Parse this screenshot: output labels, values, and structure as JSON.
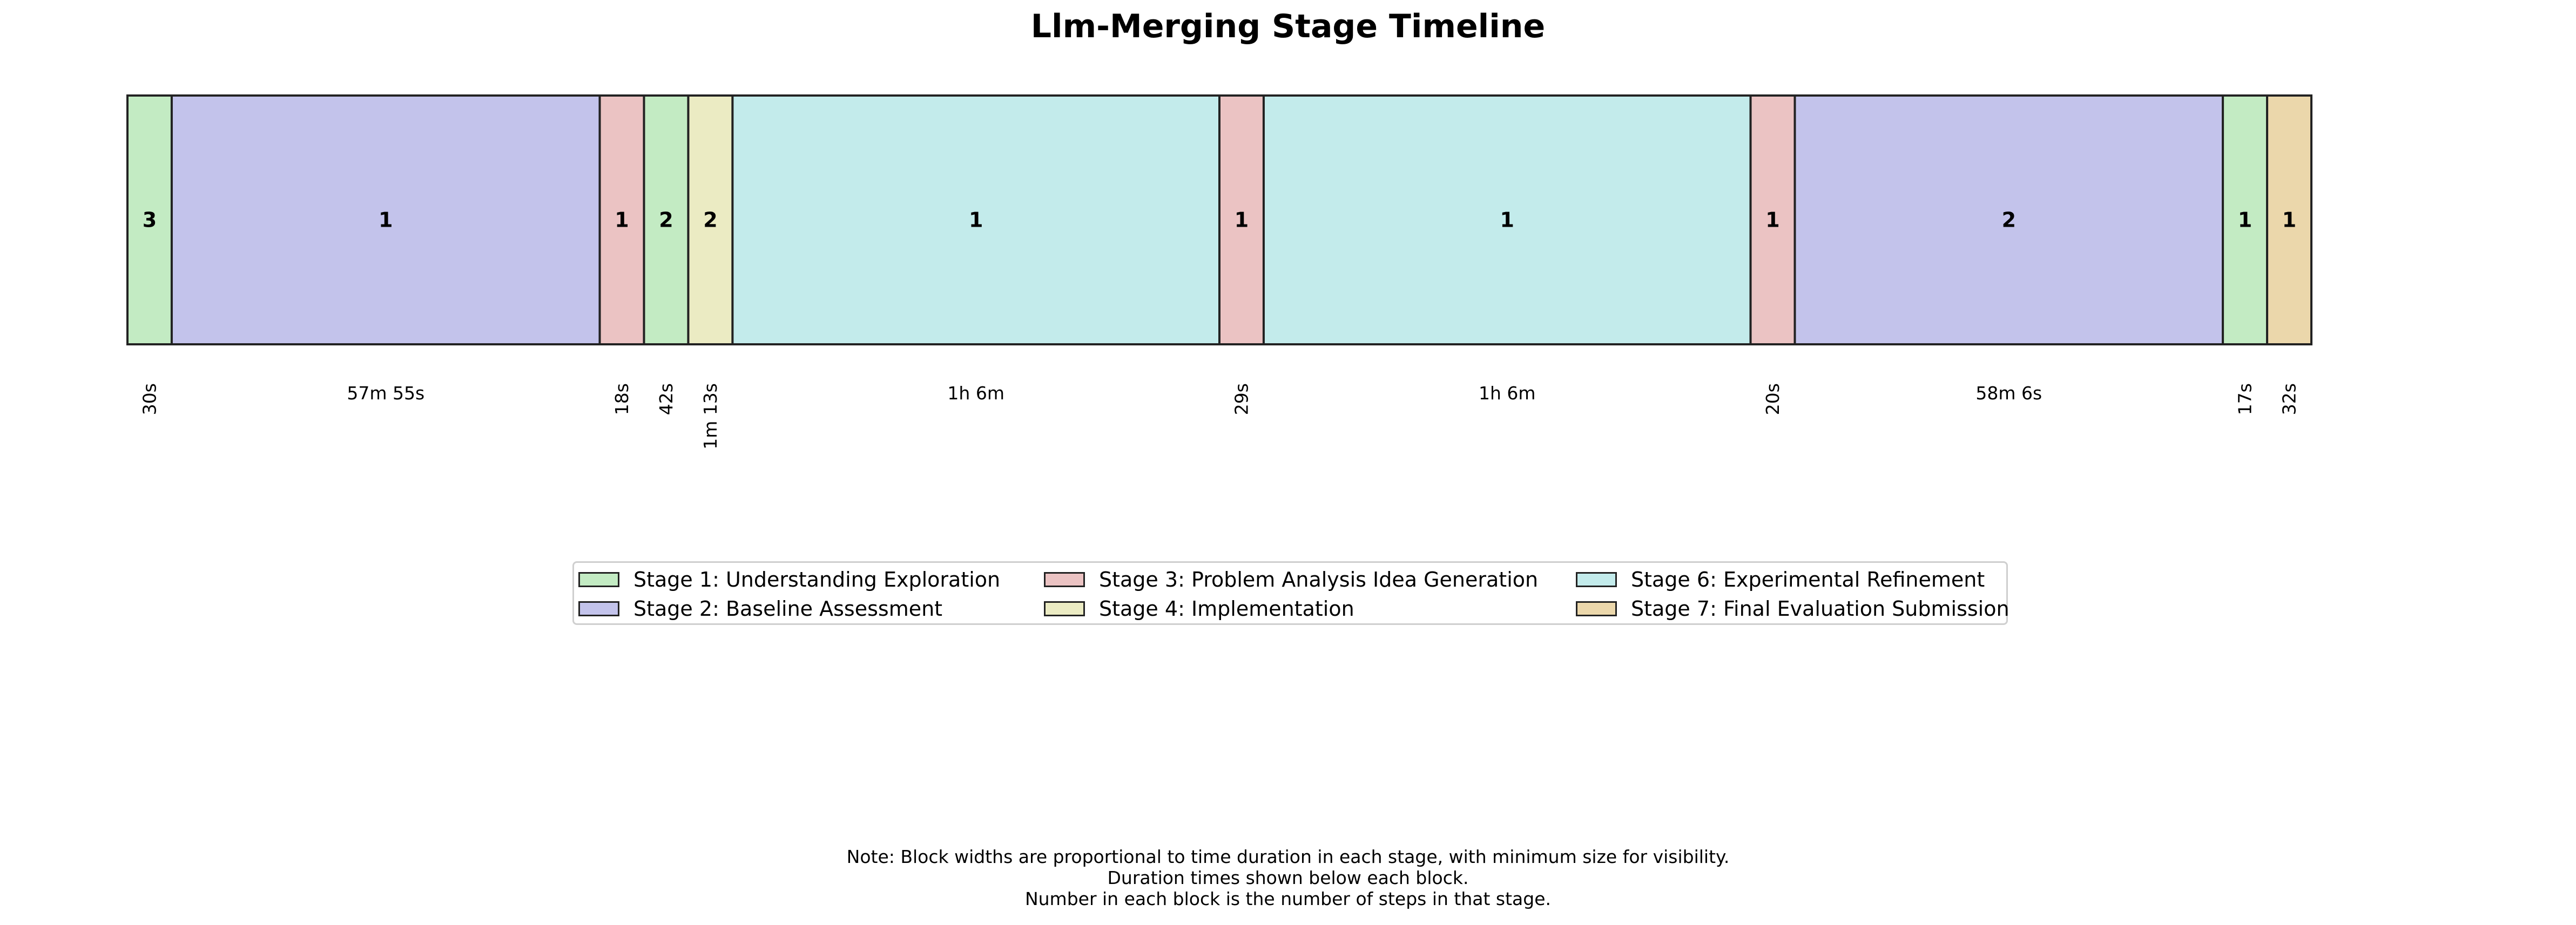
{
  "chart_data": {
    "type": "timeline",
    "title": "Llm-Merging Stage Timeline",
    "blocks": [
      {
        "stage": 1,
        "steps": "3",
        "duration": "30s",
        "relative_width": 1.0
      },
      {
        "stage": 2,
        "steps": "1",
        "duration": "57m 55s",
        "relative_width": 9.67
      },
      {
        "stage": 3,
        "steps": "1",
        "duration": "18s",
        "relative_width": 1.0
      },
      {
        "stage": 1,
        "steps": "2",
        "duration": "42s",
        "relative_width": 1.0
      },
      {
        "stage": 4,
        "steps": "2",
        "duration": "1m 13s",
        "relative_width": 1.0
      },
      {
        "stage": 6,
        "steps": "1",
        "duration": "1h 6m",
        "relative_width": 11.0
      },
      {
        "stage": 3,
        "steps": "1",
        "duration": "29s",
        "relative_width": 1.0
      },
      {
        "stage": 6,
        "steps": "1",
        "duration": "1h 6m",
        "relative_width": 11.0
      },
      {
        "stage": 3,
        "steps": "1",
        "duration": "20s",
        "relative_width": 1.0
      },
      {
        "stage": 2,
        "steps": "2",
        "duration": "58m 6s",
        "relative_width": 9.67
      },
      {
        "stage": 1,
        "steps": "1",
        "duration": "17s",
        "relative_width": 1.0
      },
      {
        "stage": 7,
        "steps": "1",
        "duration": "32s",
        "relative_width": 1.0
      }
    ],
    "stages": [
      {
        "id": 1,
        "name": "Stage 1: Understanding Exploration",
        "color": "#c3ebc3"
      },
      {
        "id": 2,
        "name": "Stage 2: Baseline Assessment",
        "color": "#c3c3eb"
      },
      {
        "id": 3,
        "name": "Stage 3: Problem Analysis Idea Generation",
        "color": "#ebc3c3"
      },
      {
        "id": 4,
        "name": "Stage 4: Implementation",
        "color": "#ebebc3"
      },
      {
        "id": 6,
        "name": "Stage 6: Experimental Refinement",
        "color": "#c3ebeb"
      },
      {
        "id": 7,
        "name": "Stage 7: Final Evaluation Submission",
        "color": "#ebd7ab"
      }
    ],
    "legend_placement": "center"
  },
  "note_lines": [
    "Note: Block widths are proportional to time duration in each stage, with minimum size for visibility.",
    "Duration times shown below each block.",
    "Number in each block is the number of steps in that stage."
  ]
}
